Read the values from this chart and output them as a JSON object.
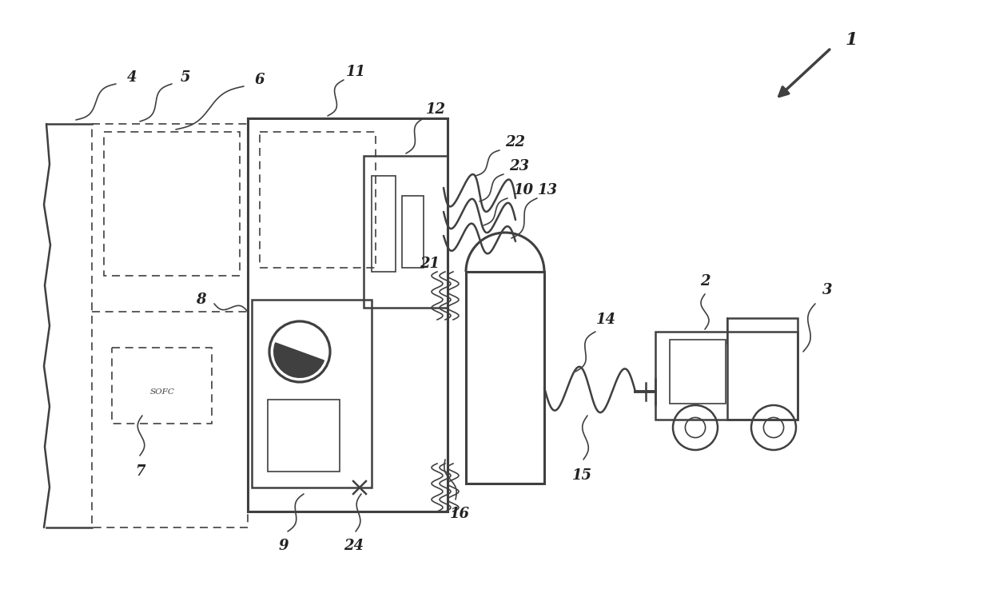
{
  "bg_color": "#ffffff",
  "line_color": "#404040",
  "fig_width": 12.4,
  "fig_height": 7.62,
  "dpi": 100
}
